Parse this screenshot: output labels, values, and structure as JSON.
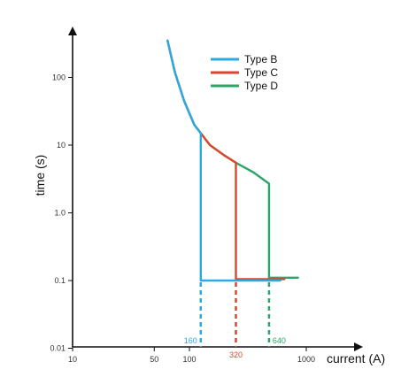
{
  "chart_data": {
    "type": "line",
    "title": "",
    "xlabel": "current (A)",
    "ylabel": "time (s)",
    "xscale": "log",
    "yscale": "log",
    "xlim": [
      10,
      1000
    ],
    "ylim": [
      0.01,
      500
    ],
    "xticks": [
      10,
      50,
      100,
      1000
    ],
    "xtick_labels": [
      "10",
      "50",
      "100",
      "1000"
    ],
    "yticks": [
      0.01,
      0.1,
      1.0,
      10,
      100
    ],
    "ytick_labels": [
      "0.01",
      "0.1",
      "1.0",
      "10",
      "100"
    ],
    "grid": false,
    "legend_position": "top-right",
    "series": [
      {
        "name": "Type B",
        "color": "#29ABE2",
        "x": [
          65,
          75,
          90,
          110,
          125,
          125,
          125,
          600
        ],
        "y": [
          350,
          120,
          45,
          20,
          15,
          10,
          0.1,
          0.1
        ]
      },
      {
        "name": "Type C",
        "color": "#D9462B",
        "x": [
          65,
          75,
          90,
          110,
          125,
          150,
          200,
          250,
          250,
          250,
          650
        ],
        "y": [
          350,
          120,
          45,
          20,
          15,
          10,
          7,
          5.5,
          4,
          0.105,
          0.105
        ]
      },
      {
        "name": "Type D",
        "color": "#2BA56A",
        "x": [
          65,
          75,
          90,
          110,
          125,
          150,
          200,
          250,
          350,
          480,
          480,
          480,
          850
        ],
        "y": [
          350,
          120,
          45,
          20,
          15,
          10,
          7,
          5.5,
          4,
          2.7,
          2.0,
          0.11,
          0.11
        ]
      }
    ],
    "annotations": [
      {
        "label": "160",
        "x": 125,
        "color": "#29ABE2",
        "side": "left"
      },
      {
        "label": "320",
        "x": 250,
        "color": "#D9462B",
        "side": "below"
      },
      {
        "label": "640",
        "x": 480,
        "color": "#2BA56A",
        "side": "right"
      }
    ]
  }
}
